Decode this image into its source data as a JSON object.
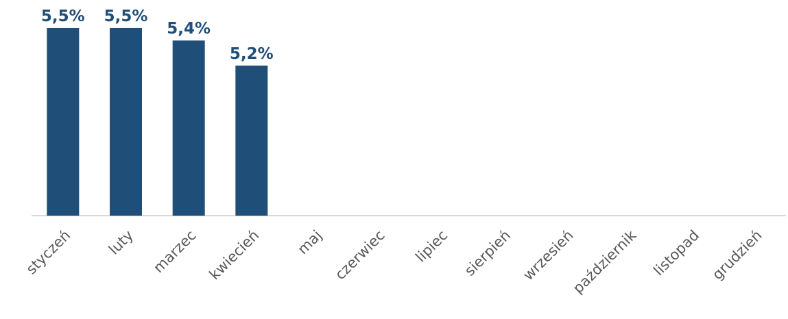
{
  "chart_data": {
    "type": "bar",
    "categories": [
      "styczeń",
      "luty",
      "marzec",
      "kwiecień",
      "maj",
      "czerwiec",
      "lipiec",
      "sierpień",
      "wrzesień",
      "październik",
      "listopad",
      "grudzień"
    ],
    "values": [
      5.5,
      5.5,
      5.4,
      5.2,
      null,
      null,
      null,
      null,
      null,
      null,
      null,
      null
    ],
    "value_labels": [
      "5,5%",
      "5,5%",
      "5,4%",
      "5,2%",
      null,
      null,
      null,
      null,
      null,
      null,
      null,
      null
    ],
    "color": "#1f4e79",
    "ylim": [
      4,
      5.7
    ]
  }
}
